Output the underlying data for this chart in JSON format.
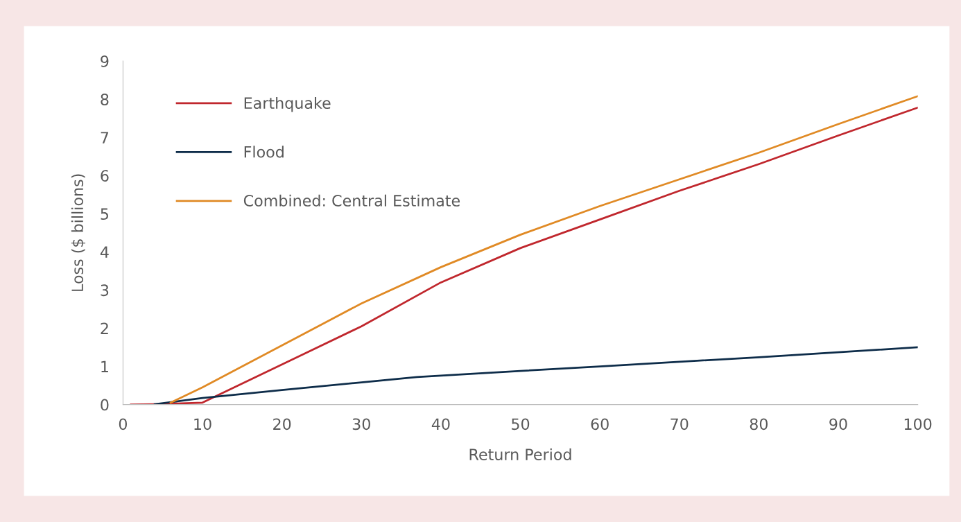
{
  "chart_data": {
    "type": "line",
    "xlabel": "Return Period",
    "ylabel": "Loss ($ billions)",
    "xlim": [
      0,
      100
    ],
    "xticks": [
      0,
      10,
      20,
      30,
      40,
      50,
      60,
      70,
      80,
      90,
      100
    ],
    "ylim": [
      0,
      9
    ],
    "yticks": [
      0,
      1,
      2,
      3,
      4,
      5,
      6,
      7,
      8,
      9
    ],
    "grid": false,
    "legend": "top left",
    "marker": "none",
    "line_style": "solid",
    "series": [
      {
        "name": "Earthquake",
        "color": "#c0272d",
        "x": [
          1,
          4,
          10,
          12,
          20,
          30,
          40,
          50,
          60,
          70,
          80,
          90,
          100
        ],
        "values": [
          0,
          0.01,
          0.05,
          0.25,
          1.05,
          2.05,
          3.2,
          4.1,
          4.85,
          5.6,
          6.3,
          7.05,
          7.78
        ]
      },
      {
        "name": "Flood",
        "color": "#0e2d4a",
        "x": [
          4,
          10,
          20,
          30,
          37,
          50,
          60,
          70,
          80,
          90,
          100
        ],
        "values": [
          0.01,
          0.17,
          0.38,
          0.58,
          0.72,
          0.88,
          1.0,
          1.12,
          1.24,
          1.37,
          1.5
        ]
      },
      {
        "name": "Combined: Central Estimate",
        "color": "#e08a25",
        "x": [
          6,
          10,
          15,
          20,
          25,
          30,
          40,
          50,
          60,
          70,
          80,
          90,
          100
        ],
        "values": [
          0.05,
          0.45,
          1.0,
          1.55,
          2.1,
          2.65,
          3.6,
          4.45,
          5.2,
          5.9,
          6.6,
          7.35,
          8.08
        ]
      }
    ]
  }
}
